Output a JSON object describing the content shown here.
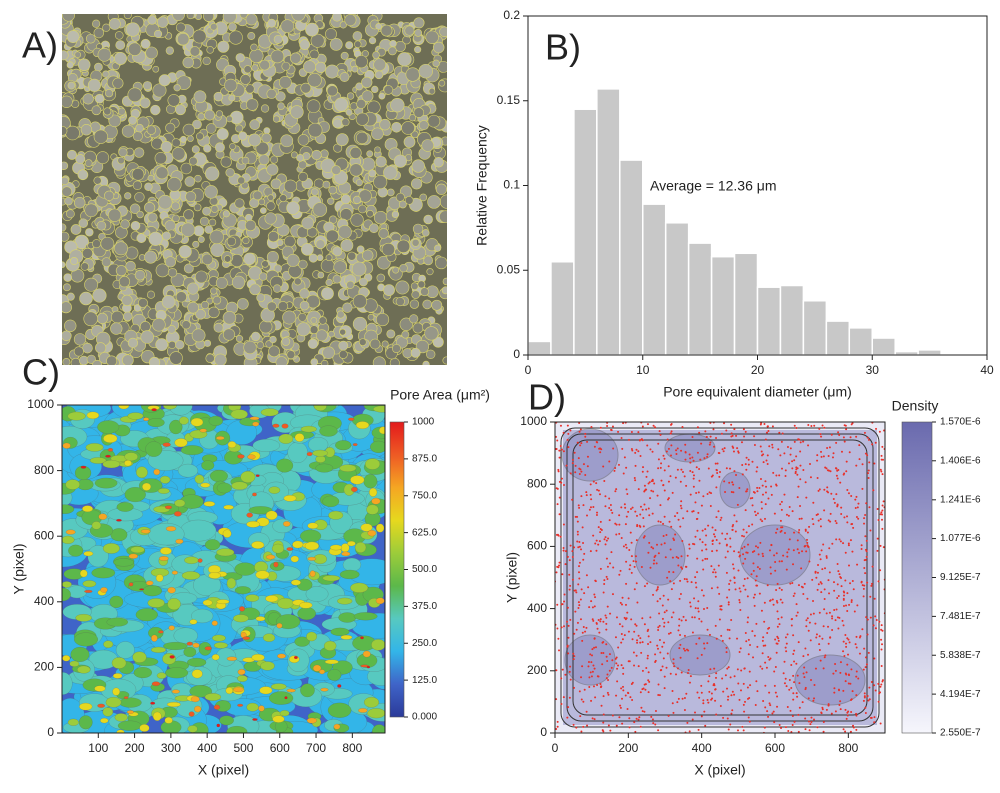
{
  "image_panel": {
    "label": "A)"
  },
  "chart_data": [
    {
      "type": "histogram",
      "label": "B)",
      "xlabel": "Pore equivalent diameter (μm)",
      "ylabel": "Relative Frequency",
      "annotation": "Average = 12.36 μm",
      "bins": [
        0,
        2,
        4,
        6,
        8,
        10,
        12,
        14,
        16,
        18,
        20,
        22,
        24,
        26,
        28,
        30,
        32,
        34,
        36
      ],
      "values": [
        0.008,
        0.055,
        0.145,
        0.157,
        0.115,
        0.089,
        0.078,
        0.066,
        0.058,
        0.06,
        0.04,
        0.041,
        0.032,
        0.02,
        0.016,
        0.01,
        0.002,
        0.003
      ],
      "color": "#c8c8c8",
      "xlim": [
        0,
        40
      ],
      "xticks": [
        0,
        10,
        20,
        30,
        40
      ],
      "ylim": [
        0,
        0.2
      ],
      "yticks": [
        0,
        0.05,
        0.1,
        0.15,
        0.2
      ]
    },
    {
      "type": "contour",
      "label": "C)",
      "xlabel": "X (pixel)",
      "ylabel": "Y (pixel)",
      "colorbar_title": "Pore Area (μm²)",
      "xlim": [
        0,
        890
      ],
      "xticks": [
        100,
        200,
        300,
        400,
        500,
        600,
        700,
        800
      ],
      "ylim": [
        0,
        1000
      ],
      "yticks": [
        0,
        200,
        400,
        600,
        800,
        1000
      ],
      "clim": [
        0,
        1000
      ],
      "cticks": [
        {
          "value": 0,
          "label": "0.000"
        },
        {
          "value": 125,
          "label": "125.0"
        },
        {
          "value": 250,
          "label": "250.0"
        },
        {
          "value": 375,
          "label": "375.0"
        },
        {
          "value": 500,
          "label": "500.0"
        },
        {
          "value": 625,
          "label": "625.0"
        },
        {
          "value": 750,
          "label": "750.0"
        },
        {
          "value": 875,
          "label": "875.0"
        },
        1000
      ],
      "colormap": [
        "#2b3a99",
        "#3f64c8",
        "#33b5e8",
        "#57c9c0",
        "#5cb84a",
        "#9ccc3a",
        "#e6d81e",
        "#f5a623",
        "#ee5a24",
        "#e31a1c"
      ]
    },
    {
      "type": "density",
      "label": "D)",
      "xlabel": "X (pixel)",
      "ylabel": "Y (pixel)",
      "colorbar_title": "Density",
      "xlim": [
        0,
        900
      ],
      "xticks": [
        0,
        200,
        400,
        600,
        800
      ],
      "ylim": [
        0,
        1000
      ],
      "yticks": [
        0,
        200,
        400,
        600,
        800,
        1000
      ],
      "clim": [
        2.55e-07,
        1.57e-06
      ],
      "cticks": [
        {
          "value": 2.55e-07,
          "label": "2.550E-7"
        },
        {
          "value": 4.194e-07,
          "label": "4.194E-7"
        },
        {
          "value": 5.838e-07,
          "label": "5.838E-7"
        },
        {
          "value": 7.481e-07,
          "label": "7.481E-7"
        },
        {
          "value": 9.125e-07,
          "label": "9.125E-7"
        },
        {
          "value": 1.077e-06,
          "label": "1.077E-6"
        },
        {
          "value": 1.241e-06,
          "label": "1.241E-6"
        },
        {
          "value": 1.406e-06,
          "label": "1.406E-6"
        },
        {
          "value": 1.57e-06,
          "label": "1.570E-6"
        }
      ],
      "colormap": [
        "#f6f6fc",
        "#6a6aae"
      ]
    }
  ]
}
